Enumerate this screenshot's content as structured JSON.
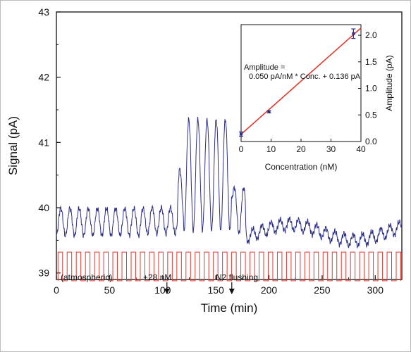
{
  "chart_data": [
    {
      "type": "line",
      "title": "",
      "xlabel": "Time (min)",
      "ylabel": "Signal (pA)",
      "xlim": [
        0,
        325
      ],
      "ylim": [
        38.9,
        43
      ],
      "xticks": [
        0,
        50,
        100,
        150,
        200,
        250,
        300
      ],
      "yticks": [
        39,
        40,
        41,
        42,
        43
      ],
      "series": [
        {
          "color": "#2c2f86",
          "segments": [
            {
              "t_start": 0,
              "t_end": 84,
              "period": 8.6,
              "baseline": 39.78,
              "amplitude": 0.42
            },
            {
              "t_start": 84,
              "t_end": 114,
              "period": 8.6,
              "baseline": 39.8,
              "amplitude": 0.4
            },
            {
              "t_start": 114,
              "t_end": 119,
              "period": 8.6,
              "baseline": 40.2,
              "amplitude": 0.8
            },
            {
              "t_start": 119,
              "t_end": 165,
              "period": 8.6,
              "baseline": 40.5,
              "amplitude": 1.7
            },
            {
              "t_start": 165,
              "t_end": 178,
              "period": 8.6,
              "baseline": 39.95,
              "amplitude": 0.7
            },
            {
              "t_start": 178,
              "t_end": 325,
              "period": 8.6,
              "baseline": 39.62,
              "amplitude": 0.18
            }
          ]
        },
        {
          "color": "#e03a2f",
          "signal": "square",
          "period": 8.6,
          "y_high": 39.32,
          "y_low": 38.88
        }
      ],
      "annotations": [
        {
          "text": "(atmospheric)",
          "x": 3
        },
        {
          "text": "+28 nM",
          "x": 103,
          "arrow_x": 104
        },
        {
          "text": "N2 flushing",
          "x": 150,
          "arrow_x": 165
        }
      ]
    },
    {
      "type": "scatter",
      "xlabel": "Concentration (nM)",
      "ylabel": "Amplitude (pA)",
      "xlim": [
        0,
        40
      ],
      "ylim": [
        0,
        2.2
      ],
      "xticks": [
        0,
        10,
        20,
        30,
        40
      ],
      "yticks": [
        0.0,
        0.5,
        1.0,
        1.5,
        2.0
      ],
      "points": [
        {
          "x": 0,
          "y": 0.14,
          "err": 0.04
        },
        {
          "x": 9.3,
          "y": 0.56,
          "err": 0.02
        },
        {
          "x": 37.5,
          "y": 2.03,
          "err": 0.09
        }
      ],
      "fit": {
        "slope": 0.05,
        "intercept": 0.136,
        "color": "#e03a2f"
      },
      "equation_lines": [
        "Amplitude =",
        "0.050 pA/nM * Conc. + 0.136 pA"
      ]
    }
  ]
}
